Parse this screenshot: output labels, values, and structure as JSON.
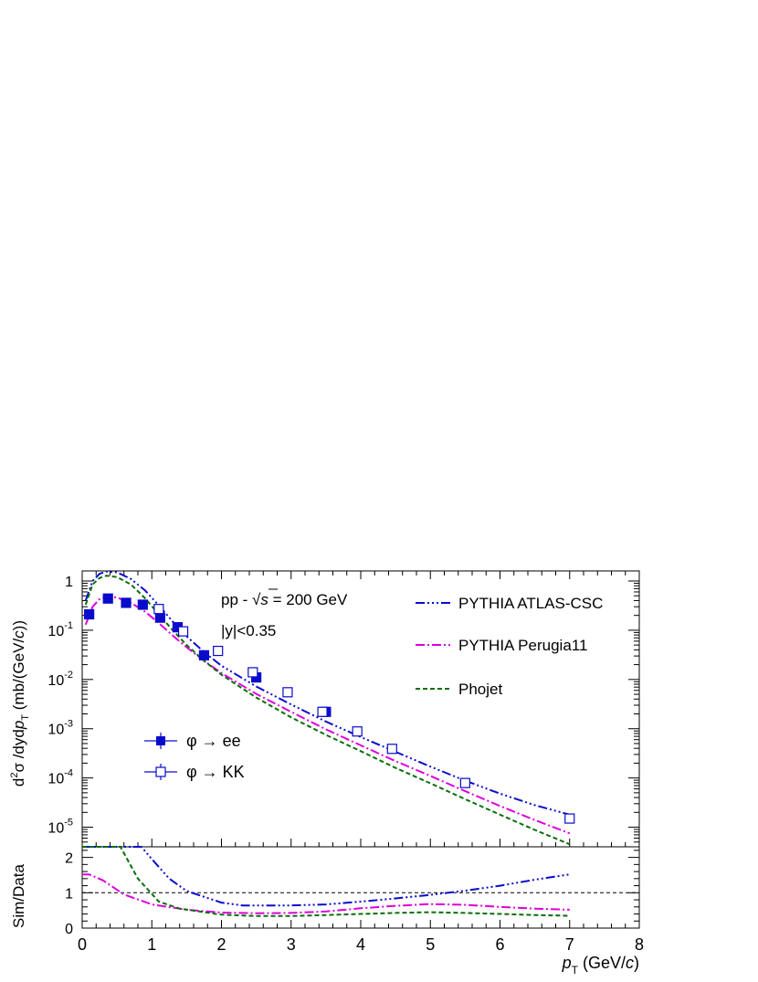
{
  "chart_data": [
    {
      "type": "scatter",
      "panel": "top",
      "ylog": true,
      "xlim": [
        0,
        8
      ],
      "ylim": [
        4e-06,
        1.6
      ],
      "ylabel": {
        "pre": "d",
        "sup": "2",
        "sigma": "σ",
        "mid": " /dyd",
        "p": "p",
        "sub": "T",
        "post": " (mb/(GeV/",
        "c": "c",
        "close": "))"
      },
      "ytick_labels": [
        {
          "v": 1e-05,
          "mant": "10",
          "exp": "-5"
        },
        {
          "v": 0.0001,
          "mant": "10",
          "exp": "-4"
        },
        {
          "v": 0.001,
          "mant": "10",
          "exp": "-3"
        },
        {
          "v": 0.01,
          "mant": "10",
          "exp": "-2"
        },
        {
          "v": 0.1,
          "mant": "10",
          "exp": "-1"
        },
        {
          "v": 1,
          "mant": "1",
          "exp": ""
        }
      ],
      "annotations": {
        "energy": {
          "pre": "pp - ",
          "sqrt_arg": "s",
          "post": " = 200 GeV"
        },
        "rapidity": "|y|<0.35"
      },
      "series": [
        {
          "name": "φ → ee",
          "kind": "markers",
          "marker": "filled-square",
          "color": "#0a0acc",
          "x": [
            0.1,
            0.37,
            0.63,
            0.87,
            1.12,
            1.37,
            1.75,
            2.5,
            3.5
          ],
          "y": [
            0.21,
            0.44,
            0.36,
            0.33,
            0.18,
            0.115,
            0.031,
            0.011,
            0.0022
          ]
        },
        {
          "name": "φ → KK",
          "kind": "markers",
          "marker": "open-square",
          "color": "#0a0acc",
          "x": [
            1.1,
            1.45,
            1.95,
            2.45,
            2.95,
            3.45,
            3.95,
            4.45,
            5.5,
            7.0
          ],
          "y": [
            0.27,
            0.095,
            0.038,
            0.014,
            0.0055,
            0.0022,
            0.00088,
            0.00039,
            7.9e-05,
            1.5e-05
          ]
        },
        {
          "name": "PYTHIA ATLAS-CSC",
          "kind": "line",
          "dash": "10,3,2,3,2,3,2,3",
          "color": "#0a0acc",
          "x": [
            0.05,
            0.15,
            0.25,
            0.35,
            0.5,
            0.7,
            0.9,
            1.1,
            1.3,
            1.5,
            1.75,
            2.0,
            2.5,
            3.0,
            3.5,
            4.0,
            4.5,
            5.0,
            5.5,
            6.0,
            6.5,
            7.0
          ],
          "y": [
            0.4,
            1.0,
            1.4,
            1.55,
            1.5,
            1.1,
            0.65,
            0.32,
            0.15,
            0.075,
            0.036,
            0.019,
            0.0072,
            0.0031,
            0.0014,
            0.00068,
            0.00034,
            0.00017,
            8.8e-05,
            4.8e-05,
            2.8e-05,
            1.8e-05
          ]
        },
        {
          "name": "PYTHIA Perugia11",
          "kind": "line",
          "dash": "10,3,2,3",
          "color": "#dd00dd",
          "x": [
            0.05,
            0.15,
            0.25,
            0.35,
            0.5,
            0.7,
            0.9,
            1.1,
            1.3,
            1.5,
            1.75,
            2.0,
            2.5,
            3.0,
            3.5,
            4.0,
            4.5,
            5.0,
            5.5,
            6.0,
            6.5,
            7.0
          ],
          "y": [
            0.13,
            0.3,
            0.43,
            0.49,
            0.46,
            0.36,
            0.24,
            0.14,
            0.078,
            0.045,
            0.024,
            0.0135,
            0.0051,
            0.0022,
            0.00097,
            0.00046,
            0.00022,
            0.00011,
            5.4e-05,
            2.7e-05,
            1.4e-05,
            7.5e-06
          ]
        },
        {
          "name": "Phojet",
          "kind": "line",
          "dash": "5,3",
          "color": "#0a6e0a",
          "x": [
            0.05,
            0.15,
            0.25,
            0.35,
            0.5,
            0.7,
            0.9,
            1.1,
            1.3,
            1.5,
            1.75,
            2.0,
            2.5,
            3.0,
            3.5,
            4.0,
            4.5,
            5.0,
            5.5,
            6.0,
            6.5,
            7.0
          ],
          "y": [
            0.33,
            0.85,
            1.15,
            1.28,
            1.2,
            0.85,
            0.45,
            0.21,
            0.1,
            0.05,
            0.024,
            0.0125,
            0.0043,
            0.0017,
            0.00075,
            0.00035,
            0.00016,
            7.8e-05,
            3.7e-05,
            1.8e-05,
            8.8e-06,
            4.5e-06
          ]
        }
      ]
    },
    {
      "type": "line",
      "panel": "bottom",
      "xlim": [
        0,
        8
      ],
      "ylim": [
        0,
        2.3
      ],
      "ylabel": "Sim/Data",
      "xlabel": {
        "p": "p",
        "sub": "T",
        "post": " (GeV/",
        "c": "c",
        "close": ")"
      },
      "xtick_labels": [
        "0",
        "1",
        "2",
        "3",
        "4",
        "5",
        "6",
        "7",
        "8"
      ],
      "ytick_labels": [
        "0",
        "1",
        "2"
      ],
      "reference_line": 1,
      "series": [
        {
          "name": "PYTHIA ATLAS-CSC",
          "dash": "10,3,2,3,2,3,2,3",
          "color": "#0a0acc",
          "x": [
            0,
            0.5,
            0.85,
            1.0,
            1.25,
            1.5,
            2.0,
            2.3,
            3.0,
            3.5,
            4.0,
            4.5,
            5.0,
            5.5,
            6.0,
            6.5,
            7.0
          ],
          "y": [
            2.3,
            2.3,
            2.3,
            1.95,
            1.4,
            1.05,
            0.72,
            0.64,
            0.64,
            0.67,
            0.75,
            0.84,
            0.94,
            1.06,
            1.2,
            1.37,
            1.52
          ]
        },
        {
          "name": "PYTHIA Perugia11",
          "dash": "10,3,2,3",
          "color": "#dd00dd",
          "x": [
            0,
            0.1,
            0.3,
            0.6,
            1.0,
            1.5,
            2.0,
            2.5,
            3.0,
            3.5,
            4.0,
            4.5,
            5.0,
            5.5,
            6.0,
            6.5,
            7.0
          ],
          "y": [
            1.52,
            1.52,
            1.35,
            0.95,
            0.67,
            0.52,
            0.44,
            0.42,
            0.43,
            0.47,
            0.56,
            0.63,
            0.68,
            0.66,
            0.6,
            0.55,
            0.52
          ]
        },
        {
          "name": "Phojet",
          "dash": "5,3",
          "color": "#0a6e0a",
          "x": [
            0,
            0.4,
            0.55,
            0.8,
            1.1,
            1.4,
            2.0,
            2.5,
            3.0,
            3.5,
            4.0,
            4.5,
            5.0,
            5.5,
            6.0,
            6.5,
            7.0
          ],
          "y": [
            2.3,
            2.3,
            2.3,
            1.4,
            0.75,
            0.55,
            0.38,
            0.34,
            0.34,
            0.37,
            0.4,
            0.43,
            0.45,
            0.43,
            0.4,
            0.37,
            0.35
          ]
        }
      ]
    }
  ]
}
